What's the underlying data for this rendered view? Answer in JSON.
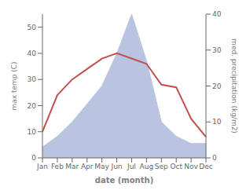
{
  "chart_data": {
    "type": "line",
    "xlabel": "date (month)",
    "ylabel": "max temp (C)",
    "y2label": "med. precipitation (kg/m2)",
    "categories": [
      "Jan",
      "Feb",
      "Mar",
      "Apr",
      "May",
      "Jun",
      "Jul",
      "Aug",
      "Sep",
      "Oct",
      "Nov",
      "Dec"
    ],
    "series": [
      {
        "type": "area",
        "axis": "y2",
        "color": "#b8c4e0",
        "values": [
          3,
          6,
          10,
          15,
          20,
          29,
          40,
          27,
          10,
          6,
          4,
          4
        ]
      },
      {
        "type": "line",
        "color": "#c0504d",
        "values": [
          10,
          24,
          30,
          34,
          38,
          40,
          38,
          36,
          28,
          27,
          15,
          8
        ]
      }
    ],
    "ylim": [
      0,
      55
    ],
    "yticks": [
      0,
      10,
      20,
      30,
      40,
      50
    ],
    "y2lim": [
      0,
      40
    ],
    "y2ticks": [
      0,
      10,
      20,
      30,
      40
    ],
    "grid": false
  }
}
